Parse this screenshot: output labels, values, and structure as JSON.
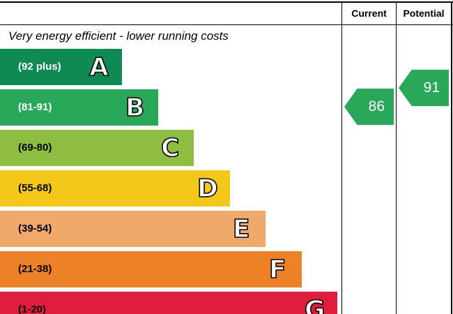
{
  "chart_data": {
    "type": "bar",
    "caption": "Very energy efficient - lower running costs",
    "columns": {
      "current": "Current",
      "potential": "Potential"
    },
    "bands": [
      {
        "letter": "A",
        "range": "(92 plus)",
        "min": 92,
        "max": 100,
        "color": "#0f8a52",
        "text_color": "#ffffff"
      },
      {
        "letter": "B",
        "range": "(81-91)",
        "min": 81,
        "max": 91,
        "color": "#2aa85a",
        "text_color": "#ffffff"
      },
      {
        "letter": "C",
        "range": "(69-80)",
        "min": 69,
        "max": 80,
        "color": "#8dbe42",
        "text_color": "#000000"
      },
      {
        "letter": "D",
        "range": "(55-68)",
        "min": 55,
        "max": 68,
        "color": "#f3c81a",
        "text_color": "#000000"
      },
      {
        "letter": "E",
        "range": "(39-54)",
        "min": 39,
        "max": 54,
        "color": "#f0a96a",
        "text_color": "#000000"
      },
      {
        "letter": "F",
        "range": "(21-38)",
        "min": 21,
        "max": 38,
        "color": "#ec8127",
        "text_color": "#000000"
      },
      {
        "letter": "G",
        "range": "(1-20)",
        "min": 1,
        "max": 20,
        "color": "#e11d3d",
        "text_color": "#000000"
      }
    ],
    "ratings": {
      "current": {
        "value": "86",
        "band": "B",
        "color": "#2aa85a"
      },
      "potential": {
        "value": "91",
        "band": "B",
        "color": "#2aa85a"
      }
    }
  }
}
